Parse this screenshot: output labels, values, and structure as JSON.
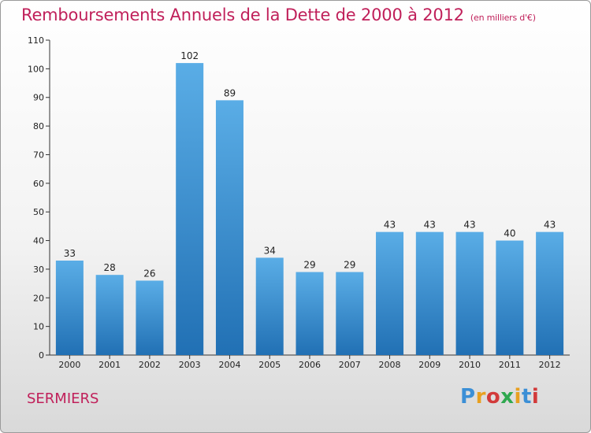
{
  "header": {
    "title": "Remboursements Annuels de la Dette de 2000 à 2012",
    "subtitle": "(en milliers d'€)"
  },
  "footer": {
    "commune": "SERMIERS",
    "logo_text": "Proxiti",
    "logo_colors": [
      "#3b8fd6",
      "#e8a020",
      "#d23a3a",
      "#2fa84f",
      "#e8a020",
      "#3b8fd6",
      "#d23a3a"
    ]
  },
  "colors": {
    "bar_top": "#5aade6",
    "bar_bottom": "#2170b4",
    "title": "#c0205a"
  },
  "chart_data": {
    "type": "bar",
    "title": "Remboursements Annuels de la Dette de 2000 à 2012",
    "subtitle": "(en milliers d'€)",
    "xlabel": "",
    "ylabel": "",
    "categories": [
      "2000",
      "2001",
      "2002",
      "2003",
      "2004",
      "2005",
      "2006",
      "2007",
      "2008",
      "2009",
      "2010",
      "2011",
      "2012"
    ],
    "values": [
      33,
      28,
      26,
      102,
      89,
      34,
      29,
      29,
      43,
      43,
      43,
      40,
      43
    ],
    "ylim": [
      0,
      110
    ],
    "yticks": [
      0,
      10,
      20,
      30,
      40,
      50,
      60,
      70,
      80,
      90,
      100,
      110
    ],
    "grid": false,
    "legend": "none"
  }
}
